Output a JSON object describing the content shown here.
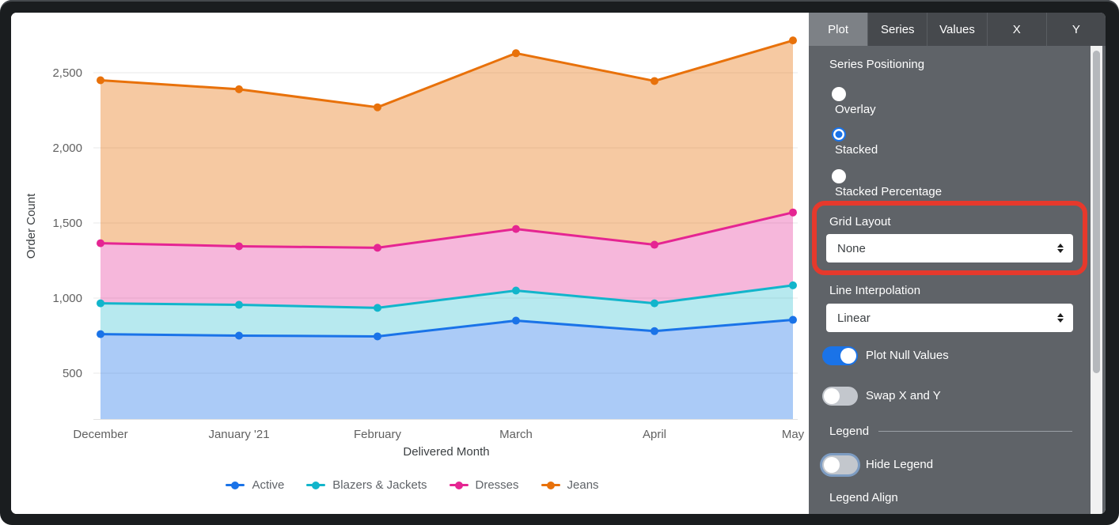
{
  "panel": {
    "tabs": [
      {
        "label": "Plot",
        "active": true
      },
      {
        "label": "Series",
        "active": false
      },
      {
        "label": "Values",
        "active": false
      },
      {
        "label": "X",
        "active": false
      },
      {
        "label": "Y",
        "active": false
      }
    ],
    "series_positioning": {
      "label": "Series Positioning",
      "options": [
        {
          "label": "Overlay",
          "selected": false
        },
        {
          "label": "Stacked",
          "selected": true
        },
        {
          "label": "Stacked Percentage",
          "selected": false
        }
      ]
    },
    "grid_layout": {
      "label": "Grid Layout",
      "value": "None"
    },
    "line_interpolation": {
      "label": "Line Interpolation",
      "value": "Linear"
    },
    "toggles": {
      "plot_null_values": {
        "label": "Plot Null Values",
        "on": true
      },
      "swap_x_y": {
        "label": "Swap X and Y",
        "on": false
      }
    },
    "legend_section": {
      "header": "Legend",
      "hide_legend": {
        "label": "Hide Legend",
        "on": false,
        "focused": true
      },
      "legend_align_label": "Legend Align"
    },
    "annotation": {
      "type": "highlight-box",
      "target": "Grid Layout",
      "color": "#e6392c"
    },
    "colors": {
      "panel_bg": "#5f6368",
      "tabbar_bg": "#46494d",
      "active_tab_bg": "#7d8186",
      "accent_blue": "#1a73e8"
    }
  },
  "chart_data": {
    "type": "area",
    "stacking": "stacked",
    "title": "",
    "xlabel": "Delivered Month",
    "ylabel": "Order Count",
    "x": [
      "December",
      "January '21",
      "February",
      "March",
      "April",
      "May"
    ],
    "series": [
      {
        "name": "Active",
        "color": "#1a73e8",
        "fill": "rgba(26,115,232,0.37)",
        "values": [
          760,
          750,
          745,
          850,
          780,
          855
        ]
      },
      {
        "name": "Blazers & Jackets",
        "color": "#12b5cb",
        "fill": "rgba(18,181,203,0.30)",
        "values": [
          205,
          205,
          190,
          200,
          185,
          230
        ]
      },
      {
        "name": "Dresses",
        "color": "#e52592",
        "fill": "rgba(229,37,146,0.33)",
        "values": [
          400,
          390,
          400,
          410,
          390,
          485
        ]
      },
      {
        "name": "Jeans",
        "color": "#e8710a",
        "fill": "rgba(232,113,10,0.38)",
        "values": [
          1085,
          1045,
          935,
          1170,
          1090,
          1145
        ]
      }
    ],
    "stacked_totals": [
      2450,
      2390,
      2270,
      2630,
      2445,
      2715
    ],
    "y_ticks": [
      500,
      1000,
      1500,
      2000,
      2500
    ],
    "y_tick_labels": [
      "500",
      "1,000",
      "1,500",
      "2,000",
      "2,500"
    ],
    "ylim": [
      195,
      2826
    ],
    "grid": true,
    "legend_position": "bottom"
  }
}
